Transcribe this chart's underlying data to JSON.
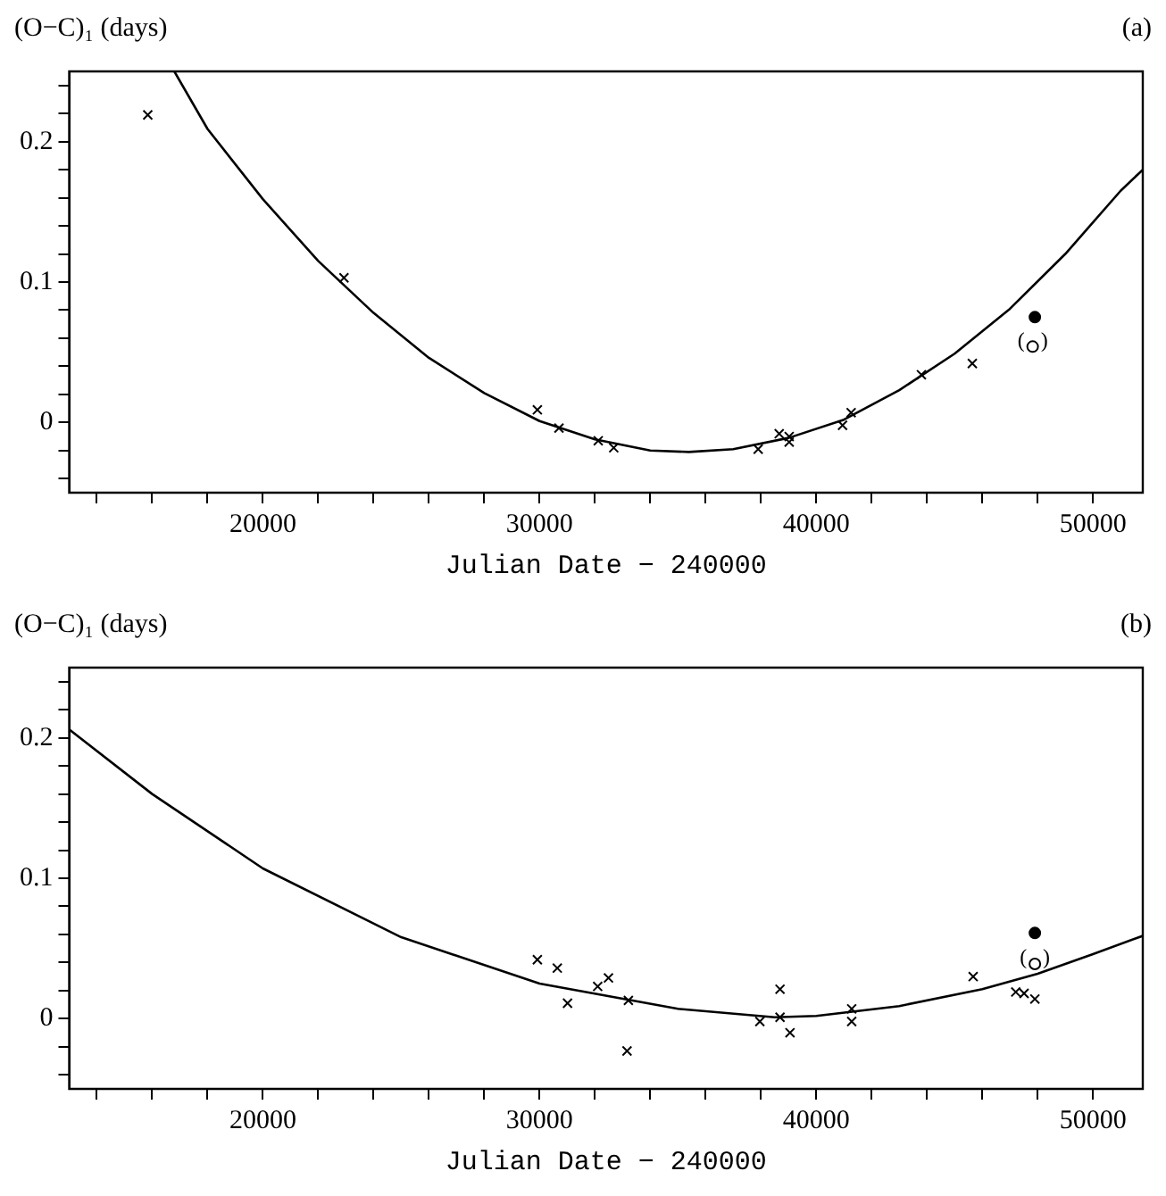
{
  "chart_data": [
    {
      "type": "scatter",
      "title": "(a)",
      "ylabel": "(O−C)₁ (days)",
      "xlabel": "Julian Date − 240000",
      "xlim": [
        13000,
        51800
      ],
      "ylim": [
        -0.05,
        0.25
      ],
      "xticks": [
        {
          "value": 14000,
          "label": null
        },
        {
          "value": 16000,
          "label": null
        },
        {
          "value": 18000,
          "label": null
        },
        20000,
        {
          "value": 22000,
          "label": null
        },
        {
          "value": 24000,
          "label": null
        },
        {
          "value": 26000,
          "label": null
        },
        {
          "value": 28000,
          "label": null
        },
        30000,
        {
          "value": 32000,
          "label": null
        },
        {
          "value": 34000,
          "label": null
        },
        {
          "value": 36000,
          "label": null
        },
        {
          "value": 38000,
          "label": null
        },
        40000,
        {
          "value": 42000,
          "label": null
        },
        {
          "value": 44000,
          "label": null
        },
        {
          "value": 46000,
          "label": null
        },
        {
          "value": 48000,
          "label": null
        },
        50000
      ],
      "yticks": [
        {
          "value": -0.04,
          "label": null
        },
        {
          "value": -0.02,
          "label": null
        },
        0,
        {
          "value": 0.02,
          "label": null
        },
        {
          "value": 0.04,
          "label": null
        },
        {
          "value": 0.06,
          "label": null
        },
        {
          "value": 0.08,
          "label": null
        },
        0.1,
        {
          "value": 0.12,
          "label": null
        },
        {
          "value": 0.14,
          "label": null
        },
        {
          "value": 0.16,
          "label": null
        },
        {
          "value": 0.18,
          "label": null
        },
        0.2,
        {
          "value": 0.22,
          "label": null
        },
        {
          "value": 0.24,
          "label": null
        }
      ],
      "grid": false,
      "legend": false,
      "annotations": [
        {
          "text": "(   )",
          "x": 47820,
          "y": 0.054
        }
      ],
      "series": [
        {
          "type": "line",
          "marker": "none",
          "color": "#000000",
          "x": [
            16800,
            18000,
            20000,
            22000,
            24000,
            26000,
            28000,
            30000,
            32000,
            34000,
            35400,
            37000,
            39000,
            41000,
            43000,
            45000,
            47000,
            49000,
            51000,
            51800
          ],
          "values": [
            0.25,
            0.209,
            0.159,
            0.115,
            0.078,
            0.046,
            0.021,
            0.001,
            -0.012,
            -0.02,
            -0.021,
            -0.019,
            -0.011,
            0.002,
            0.023,
            0.049,
            0.081,
            0.12,
            0.165,
            0.18
          ]
        },
        {
          "type": "scatter",
          "marker": "cross",
          "color": "#000000",
          "x": [
            15840,
            22930,
            29920,
            30700,
            32120,
            32680,
            37900,
            38660,
            39020,
            39020,
            40950,
            41260,
            43800,
            45640
          ],
          "values": [
            0.219,
            0.103,
            0.009,
            -0.004,
            -0.013,
            -0.018,
            -0.019,
            -0.008,
            -0.01,
            -0.014,
            -0.002,
            0.007,
            0.034,
            0.042
          ]
        },
        {
          "type": "scatter",
          "marker": "circle",
          "color": "#000000",
          "x": [
            47900
          ],
          "values": [
            0.075
          ]
        },
        {
          "type": "scatter",
          "marker": "circle",
          "color": "#ffffff",
          "x": [
            47820
          ],
          "values": [
            0.054
          ]
        }
      ]
    },
    {
      "type": "scatter",
      "title": "(b)",
      "ylabel": "(O−C)₁ (days)",
      "xlabel": "Julian Date − 240000",
      "xlim": [
        13000,
        51800
      ],
      "ylim": [
        -0.05,
        0.25
      ],
      "xticks": [
        {
          "value": 14000,
          "label": null
        },
        {
          "value": 16000,
          "label": null
        },
        {
          "value": 18000,
          "label": null
        },
        20000,
        {
          "value": 22000,
          "label": null
        },
        {
          "value": 24000,
          "label": null
        },
        {
          "value": 26000,
          "label": null
        },
        {
          "value": 28000,
          "label": null
        },
        30000,
        {
          "value": 32000,
          "label": null
        },
        {
          "value": 34000,
          "label": null
        },
        {
          "value": 36000,
          "label": null
        },
        {
          "value": 38000,
          "label": null
        },
        40000,
        {
          "value": 42000,
          "label": null
        },
        {
          "value": 44000,
          "label": null
        },
        {
          "value": 46000,
          "label": null
        },
        {
          "value": 48000,
          "label": null
        },
        50000
      ],
      "yticks": [
        {
          "value": -0.04,
          "label": null
        },
        {
          "value": -0.02,
          "label": null
        },
        0,
        {
          "value": 0.02,
          "label": null
        },
        {
          "value": 0.04,
          "label": null
        },
        {
          "value": 0.06,
          "label": null
        },
        {
          "value": 0.08,
          "label": null
        },
        0.1,
        {
          "value": 0.12,
          "label": null
        },
        {
          "value": 0.14,
          "label": null
        },
        {
          "value": 0.16,
          "label": null
        },
        {
          "value": 0.18,
          "label": null
        },
        0.2,
        {
          "value": 0.22,
          "label": null
        },
        {
          "value": 0.24,
          "label": null
        }
      ],
      "grid": false,
      "legend": false,
      "annotations": [
        {
          "text": "(   )",
          "x": 47900,
          "y": 0.039
        }
      ],
      "series": [
        {
          "type": "line",
          "marker": "none",
          "color": "#000000",
          "x": [
            13000,
            16000,
            20000,
            25000,
            30000,
            35000,
            38500,
            40000,
            43000,
            46000,
            48000,
            50000,
            51800
          ],
          "values": [
            0.206,
            0.16,
            0.107,
            0.058,
            0.025,
            0.007,
            0.001,
            0.002,
            0.009,
            0.021,
            0.032,
            0.046,
            0.059
          ]
        },
        {
          "type": "scatter",
          "marker": "cross",
          "color": "#000000",
          "x": [
            29920,
            30640,
            31010,
            32100,
            32490,
            33210,
            33160,
            37960,
            38690,
            38690,
            39050,
            41280,
            41280,
            45670,
            47210,
            47510,
            47900
          ],
          "values": [
            0.042,
            0.036,
            0.011,
            0.023,
            0.029,
            0.013,
            -0.023,
            -0.002,
            0.021,
            0.001,
            -0.01,
            0.007,
            -0.002,
            0.03,
            0.019,
            0.018,
            0.014
          ]
        },
        {
          "type": "scatter",
          "marker": "circle",
          "color": "#000000",
          "x": [
            47900
          ],
          "values": [
            0.061
          ]
        },
        {
          "type": "scatter",
          "marker": "circle",
          "color": "#ffffff",
          "x": [
            47900
          ],
          "values": [
            0.039
          ]
        }
      ]
    }
  ]
}
